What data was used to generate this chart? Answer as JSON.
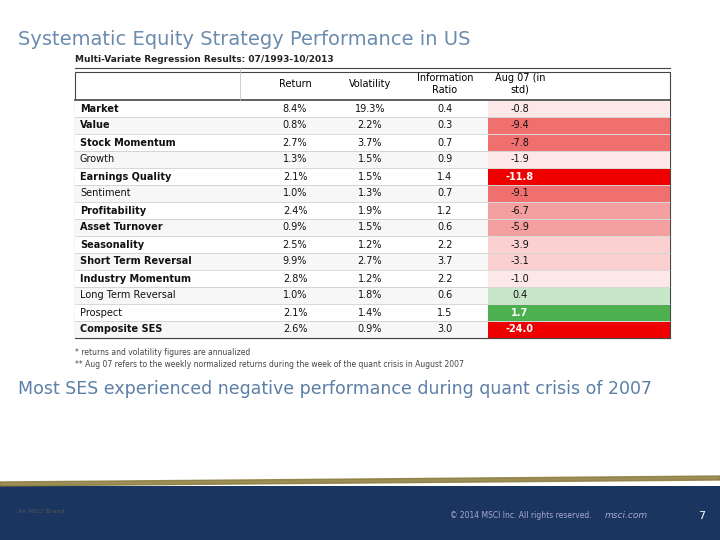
{
  "title": "Systematic Equity Strategy Performance in US",
  "subtitle": "Multi-Variate Regression Results: 07/1993-10/2013",
  "rows": [
    [
      "Market",
      "8.4%",
      "19.3%",
      "0.4",
      "-0.8"
    ],
    [
      "Value",
      "0.8%",
      "2.2%",
      "0.3",
      "-9.4"
    ],
    [
      "Stock Momentum",
      "2.7%",
      "3.7%",
      "0.7",
      "-7.8"
    ],
    [
      "Growth",
      "1.3%",
      "1.5%",
      "0.9",
      "-1.9"
    ],
    [
      "Earnings Quality",
      "2.1%",
      "1.5%",
      "1.4",
      "-11.8"
    ],
    [
      "Sentiment",
      "1.0%",
      "1.3%",
      "0.7",
      "-9.1"
    ],
    [
      "Profitability",
      "2.4%",
      "1.9%",
      "1.2",
      "-6.7"
    ],
    [
      "Asset Turnover",
      "0.9%",
      "1.5%",
      "0.6",
      "-5.9"
    ],
    [
      "Seasonality",
      "2.5%",
      "1.2%",
      "2.2",
      "-3.9"
    ],
    [
      "Short Term Reversal",
      "9.9%",
      "2.7%",
      "3.7",
      "-3.1"
    ],
    [
      "Industry Momentum",
      "2.8%",
      "1.2%",
      "2.2",
      "-1.0"
    ],
    [
      "Long Term Reversal",
      "1.0%",
      "1.8%",
      "0.6",
      "0.4"
    ],
    [
      "Prospect",
      "2.1%",
      "1.4%",
      "1.5",
      "1.7"
    ],
    [
      "Composite SES",
      "2.6%",
      "0.9%",
      "3.0",
      "-24.0"
    ]
  ],
  "aug07_values": [
    -0.8,
    -9.4,
    -7.8,
    -1.9,
    -11.8,
    -9.1,
    -6.7,
    -5.9,
    -3.9,
    -3.1,
    -1.0,
    0.4,
    1.7,
    -24.0
  ],
  "bold_rows": [
    "Market",
    "Value",
    "Stock Momentum",
    "Earnings Quality",
    "Profitability",
    "Asset Turnover",
    "Seasonality",
    "Short Term Reversal",
    "Industry Momentum",
    "Composite SES"
  ],
  "footnote1": "* returns and volatility figures are annualized",
  "footnote2": "** Aug 07 refers to the weekly normalized returns during the week of the quant crisis in August 2007",
  "bottom_text": "Most SES experienced negative performance during quant crisis of 2007",
  "bg_color": "#ffffff",
  "title_color": "#6b8cae",
  "subtitle_color": "#222222",
  "bottom_text_color": "#5b7fa6",
  "footer_bg": "#1a3560",
  "footer_band_color": "#8a7a3a",
  "color_strong_red": "#ee0000",
  "color_medium_red": "#f07070",
  "color_light_red1": "#f5a0a0",
  "color_light_red2": "#fad0d0",
  "color_very_light_red": "#fde8e8",
  "color_light_green": "#c8e6c9",
  "color_strong_green": "#4caf50",
  "text_white": "#ffffff",
  "text_dark": "#111111",
  "border_dark": "#444444",
  "border_light": "#bbbbbb"
}
